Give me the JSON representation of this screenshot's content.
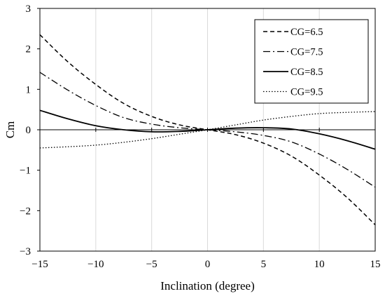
{
  "chart_data": {
    "type": "line",
    "xlabel": "Inclination (degree)",
    "ylabel": "Cm",
    "xlim": [
      -15,
      15
    ],
    "ylim": [
      -3,
      3
    ],
    "x_ticks": [
      -15,
      -10,
      -5,
      0,
      5,
      10,
      15
    ],
    "y_ticks": [
      -3,
      -2,
      -1,
      0,
      1,
      2,
      3
    ],
    "x_tick_labels": [
      "−15",
      "−10",
      "−5",
      "0",
      "5",
      "10",
      "15"
    ],
    "y_tick_labels": [
      "−3",
      "−2",
      "−1",
      "0",
      "1",
      "2",
      "3"
    ],
    "grid": "vertical",
    "legend_position": "top-right",
    "x": [
      -15,
      -12.5,
      -10,
      -7.5,
      -5,
      -2.5,
      0,
      2.5,
      5,
      7.5,
      10,
      12.5,
      15
    ],
    "series": [
      {
        "name": "CG=6.5",
        "style": "dashed",
        "values": [
          2.35,
          1.68,
          1.12,
          0.65,
          0.33,
          0.12,
          0.0,
          -0.12,
          -0.33,
          -0.65,
          -1.12,
          -1.68,
          -2.35
        ]
      },
      {
        "name": "CG=7.5",
        "style": "dash-dot",
        "values": [
          1.42,
          0.98,
          0.6,
          0.3,
          0.14,
          0.05,
          0.0,
          -0.05,
          -0.14,
          -0.3,
          -0.6,
          -0.98,
          -1.42
        ]
      },
      {
        "name": "CG=8.5",
        "style": "solid",
        "values": [
          0.48,
          0.27,
          0.1,
          0.0,
          -0.05,
          -0.04,
          0.0,
          0.04,
          0.05,
          0.02,
          -0.1,
          -0.27,
          -0.48
        ]
      },
      {
        "name": "CG=9.5",
        "style": "dotted",
        "values": [
          -0.45,
          -0.42,
          -0.38,
          -0.31,
          -0.22,
          -0.11,
          0.0,
          0.12,
          0.24,
          0.33,
          0.4,
          0.43,
          0.45
        ]
      }
    ]
  }
}
